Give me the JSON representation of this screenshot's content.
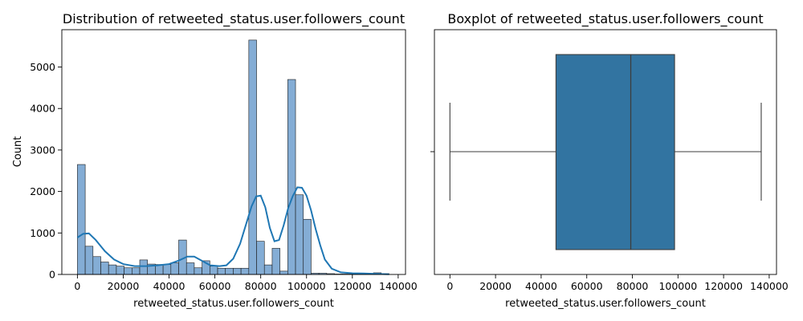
{
  "chart_data": [
    {
      "type": "histogram",
      "title": "Distribution of retweeted_status.user.followers_count",
      "xlabel": "retweeted_status.user.followers_count",
      "ylabel": "Count",
      "xlim": [
        -6800,
        143200
      ],
      "ylim": [
        0,
        5900
      ],
      "xticks": [
        0,
        20000,
        40000,
        60000,
        80000,
        100000,
        120000,
        140000
      ],
      "yticks": [
        0,
        1000,
        2000,
        3000,
        4000,
        5000
      ],
      "bin_start": 0,
      "bin_width": 3400,
      "counts": [
        2650,
        680,
        430,
        300,
        230,
        200,
        160,
        160,
        350,
        250,
        240,
        240,
        280,
        830,
        280,
        160,
        330,
        200,
        150,
        150,
        150,
        150,
        5650,
        800,
        230,
        630,
        80,
        4700,
        1920,
        1330,
        30,
        30,
        20,
        10,
        10,
        10,
        20,
        10,
        40,
        20
      ],
      "kde": {
        "x": [
          0,
          2500,
          5000,
          8000,
          12000,
          16000,
          20000,
          25000,
          30000,
          35000,
          40000,
          44000,
          48000,
          51000,
          55000,
          58000,
          62000,
          65000,
          68000,
          71000,
          74000,
          76000,
          78000,
          80000,
          82000,
          84000,
          86000,
          88000,
          90000,
          92000,
          94000,
          96000,
          98000,
          100000,
          102000,
          104000,
          106000,
          108000,
          111000,
          115000,
          120000,
          125000,
          130000,
          136000
        ],
        "y": [
          890,
          980,
          990,
          830,
          560,
          360,
          250,
          200,
          200,
          220,
          250,
          330,
          430,
          430,
          310,
          220,
          200,
          220,
          380,
          740,
          1280,
          1640,
          1880,
          1900,
          1620,
          1120,
          800,
          830,
          1180,
          1600,
          1890,
          2100,
          2090,
          1900,
          1540,
          1090,
          700,
          360,
          140,
          50,
          30,
          25,
          15,
          5
        ]
      },
      "color": "#1f77b4",
      "bar_fill": "#84add5"
    },
    {
      "type": "boxplot",
      "title": "Boxplot of retweeted_status.user.followers_count",
      "xlabel": "retweeted_status.user.followers_count",
      "xlim": [
        -6800,
        143200
      ],
      "xticks": [
        0,
        20000,
        40000,
        60000,
        80000,
        100000,
        120000,
        140000
      ],
      "whisker_low": 0,
      "q1": 46500,
      "median": 79300,
      "q3": 98500,
      "whisker_high": 136500,
      "color": "#3274a1"
    }
  ]
}
